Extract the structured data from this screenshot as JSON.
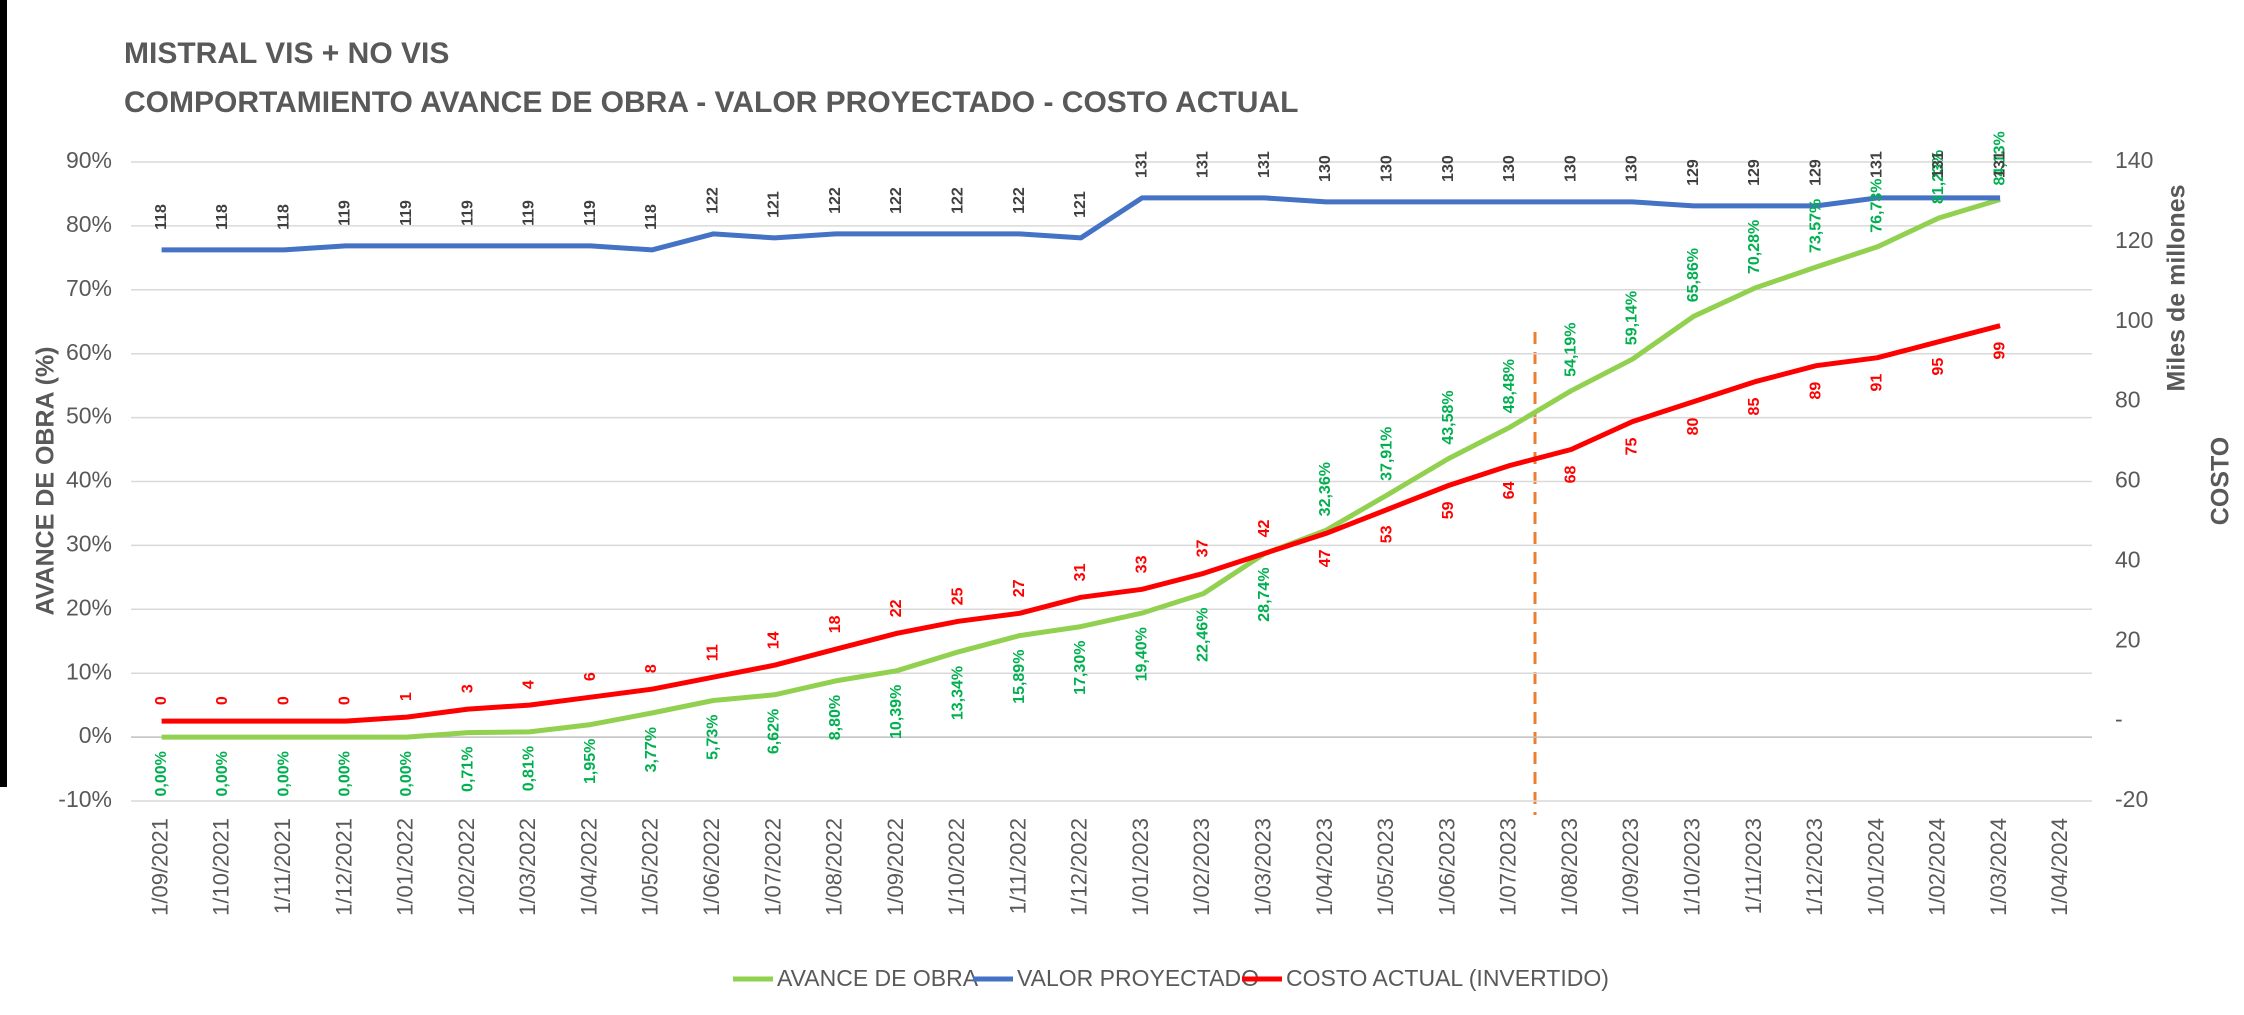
{
  "chart_data": {
    "type": "line",
    "title": "MISTRAL VIS + NO VIS",
    "subtitle": "COMPORTAMIENTO AVANCE DE OBRA - VALOR PROYECTADO - COSTO ACTUAL",
    "ylabel": "AVANCE DE OBRA (%)",
    "y2label": "Miles de millones",
    "y2label2": "COSTO",
    "categories": [
      "1/09/2021",
      "1/10/2021",
      "1/11/2021",
      "1/12/2021",
      "1/01/2022",
      "1/02/2022",
      "1/03/2022",
      "1/04/2022",
      "1/05/2022",
      "1/06/2022",
      "1/07/2022",
      "1/08/2022",
      "1/09/2022",
      "1/10/2022",
      "1/11/2022",
      "1/12/2022",
      "1/01/2023",
      "1/02/2023",
      "1/03/2023",
      "1/04/2023",
      "1/05/2023",
      "1/06/2023",
      "1/07/2023",
      "1/08/2023",
      "1/09/2023",
      "1/10/2023",
      "1/11/2023",
      "1/12/2023",
      "1/01/2024",
      "1/02/2024",
      "1/03/2024",
      "1/04/2024"
    ],
    "series": [
      {
        "name": "AVANCE DE OBRA",
        "color": "#92d050",
        "label_color": "#00b050",
        "values": [
          0,
          0,
          0,
          0,
          0,
          0.71,
          0.81,
          1.95,
          3.77,
          5.73,
          6.62,
          8.8,
          10.39,
          13.34,
          15.89,
          17.3,
          19.4,
          22.46,
          28.74,
          32.36,
          37.91,
          43.58,
          48.48,
          54.19,
          59.14,
          65.86,
          70.28,
          73.57,
          76.73,
          81.23,
          84.13,
          null
        ],
        "value_labels": [
          "0,00%",
          "0,00%",
          "0,00%",
          "0,00%",
          "0,00%",
          "0,71%",
          "0,81%",
          "1,95%",
          "3,77%",
          "5,73%",
          "6,62%",
          "8,80%",
          "10,39%",
          "13,34%",
          "15,89%",
          "17,30%",
          "19,40%",
          "22,46%",
          "28,74%",
          "32,36%",
          "37,91%",
          "43,58%",
          "48,48%",
          "54,19%",
          "59,14%",
          "65,86%",
          "70,28%",
          "73,57%",
          "76,73%",
          "81,23%",
          "84,13%",
          null
        ]
      },
      {
        "name": "VALOR PROYECTADO",
        "color": "#4472c4",
        "label_color": "#404040",
        "axis": "y2",
        "values": [
          118,
          118,
          118,
          119,
          119,
          119,
          119,
          119,
          118,
          122,
          121,
          122,
          122,
          122,
          122,
          121,
          131,
          131,
          131,
          130,
          130,
          130,
          130,
          130,
          130,
          129,
          129,
          129,
          131,
          131,
          131,
          null
        ]
      },
      {
        "name": "COSTO ACTUAL (INVERTIDO)",
        "color": "#ff0000",
        "label_color": "#ff0000",
        "axis": "y2",
        "values": [
          0,
          0,
          0,
          0,
          1,
          3,
          4,
          6,
          8,
          11,
          14,
          18,
          22,
          25,
          27,
          31,
          33,
          37,
          42,
          47,
          53,
          59,
          64,
          68,
          75,
          80,
          85,
          89,
          91,
          95,
          99,
          null
        ]
      }
    ],
    "ylim": [
      -10,
      90
    ],
    "yticks": [
      {
        "value": -10,
        "label": "-10%"
      },
      {
        "value": 0,
        "label": "0%"
      },
      {
        "value": 10,
        "label": "10%"
      },
      {
        "value": 20,
        "label": "20%"
      },
      {
        "value": 30,
        "label": "30%"
      },
      {
        "value": 40,
        "label": "40%"
      },
      {
        "value": 50,
        "label": "50%"
      },
      {
        "value": 60,
        "label": "60%"
      },
      {
        "value": 70,
        "label": "70%"
      },
      {
        "value": 80,
        "label": "80%"
      },
      {
        "value": 90,
        "label": "90%"
      }
    ],
    "y2lim": [
      -20,
      140
    ],
    "y2ticks": [
      -20,
      {
        "value": 0,
        "label": "-"
      },
      20,
      40,
      60,
      80,
      100,
      120,
      140
    ],
    "grid": true,
    "legend": "bottom"
  }
}
